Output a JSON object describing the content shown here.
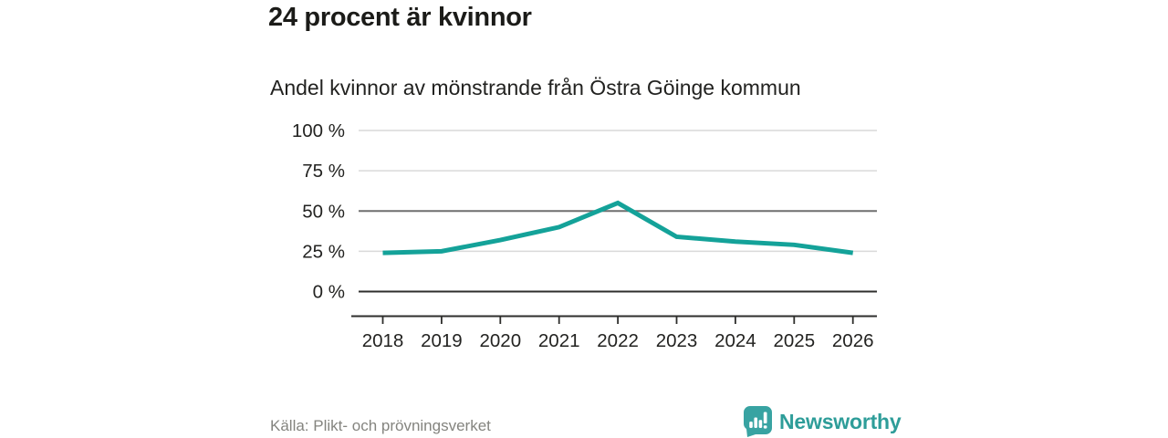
{
  "header": {
    "title": "24 procent är kvinnor",
    "subtitle": "Andel kvinnor av mönstrande från Östra Göinge kommun"
  },
  "chart_data": {
    "type": "line",
    "title": "24 procent är kvinnor",
    "subtitle": "Andel kvinnor av mönstrande från Östra Göinge kommun",
    "categories": [
      "2018",
      "2019",
      "2020",
      "2021",
      "2022",
      "2023",
      "2024",
      "2025",
      "2026"
    ],
    "series": [
      {
        "name": "Andel kvinnor av mönstrande",
        "values": [
          24,
          25,
          32,
          40,
          55,
          34,
          31,
          29,
          24
        ],
        "color": "#14a299"
      }
    ],
    "xlabel": "",
    "ylabel": "",
    "ylim": [
      0,
      100
    ],
    "yticks": [
      0,
      25,
      50,
      75,
      100
    ],
    "ytick_labels": [
      "0 %",
      "25 %",
      "50 %",
      "75 %",
      "100 %"
    ],
    "grid": true,
    "baseline_ticks": [
      0
    ],
    "emphasized_ticks": [
      50
    ],
    "legend_position": "none"
  },
  "footer": {
    "source": "Källa: Plikt- och prövningsverket",
    "brand": "Newsworthy",
    "brand_color": "#2e9d99",
    "brand_icon": "speech-bubble-bar-chart-exclamation"
  },
  "colors": {
    "line": "#14a299",
    "grid_light": "#d9d9d9",
    "grid_emphasis": "#6f6f6f",
    "axis": "#2e2e2c",
    "tick_text": "#232321",
    "source_text": "#84847f",
    "logo_fill": "#38a3a2"
  }
}
